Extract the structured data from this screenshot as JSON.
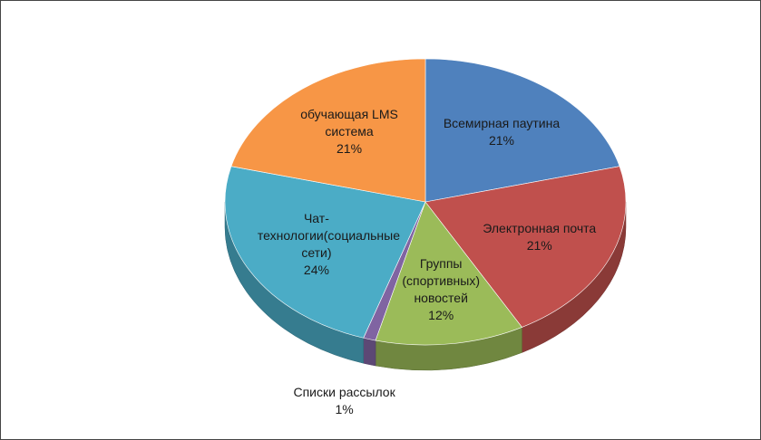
{
  "chart_data": {
    "type": "pie",
    "categories": [
      "Всемирная паутина",
      "Электронная почта",
      "Группы (спортивных) новостей",
      "Списки рассылок",
      "Чат-технологии(социальные сети)",
      "обучающая LMS система"
    ],
    "values": [
      21,
      21,
      12,
      1,
      24,
      21
    ],
    "value_labels": [
      "21%",
      "21%",
      "12%",
      "1%",
      "24%",
      "21%"
    ],
    "colors": [
      "#4f81bd",
      "#c0504d",
      "#9bbb59",
      "#8064a2",
      "#4bacc6",
      "#f79646"
    ]
  }
}
